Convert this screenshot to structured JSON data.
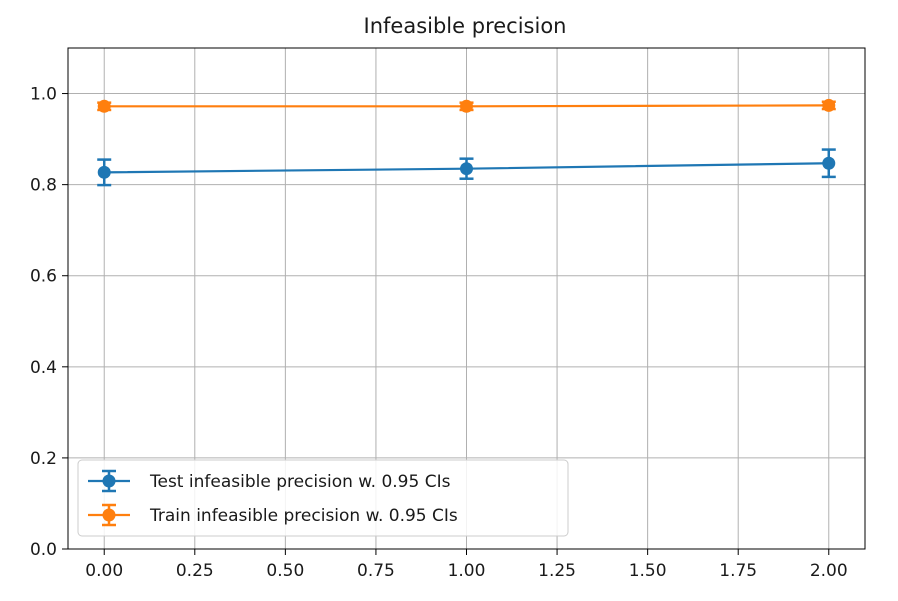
{
  "chart_data": {
    "type": "line",
    "title": "Infeasible precision",
    "xlabel": "",
    "ylabel": "",
    "xlim": [
      -0.1,
      2.1
    ],
    "ylim": [
      0.0,
      1.1
    ],
    "x_ticks": [
      "0.00",
      "0.25",
      "0.50",
      "0.75",
      "1.00",
      "1.25",
      "1.50",
      "1.75",
      "2.00"
    ],
    "y_ticks": [
      "0.0",
      "0.2",
      "0.4",
      "0.6",
      "0.8",
      "1.0"
    ],
    "grid": true,
    "legend_position": "lower-left",
    "series": [
      {
        "name": "Test infeasible precision w. 0.95 CIs",
        "color": "#1f77b4",
        "x": [
          0,
          1,
          2
        ],
        "y": [
          0.827,
          0.835,
          0.847
        ],
        "err": [
          0.028,
          0.022,
          0.03
        ]
      },
      {
        "name": "Train infeasible precision w. 0.95 CIs",
        "color": "#ff7f0e",
        "x": [
          0,
          1,
          2
        ],
        "y": [
          0.972,
          0.972,
          0.974
        ],
        "err": [
          0.008,
          0.008,
          0.008
        ]
      }
    ]
  }
}
